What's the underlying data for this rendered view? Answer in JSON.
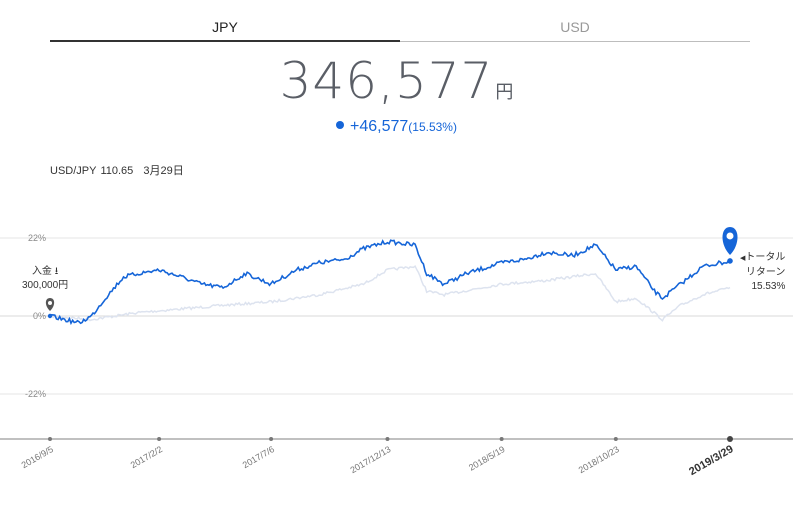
{
  "tabs": [
    {
      "label": "JPY",
      "active": true
    },
    {
      "label": "USD",
      "active": false
    }
  ],
  "balance": {
    "amount": "346,577",
    "unit": "円"
  },
  "change": {
    "amount": "+46,577",
    "percent": "(15.53%)"
  },
  "fx": {
    "pair": "USD/JPY",
    "rate": "110.65",
    "date": "3月29日"
  },
  "deposit": {
    "label": "入金",
    "amount": "300,000円"
  },
  "total_return": {
    "line1": "トータル",
    "line2": "リターン",
    "value": "15.53%"
  },
  "colors": {
    "portfolio": "#1565d8",
    "benchmark": "#dde3ef",
    "accent": "#1565d8"
  },
  "chart_data": {
    "type": "line",
    "y_ticks": [
      {
        "value": 22,
        "label": "22%"
      },
      {
        "value": 0,
        "label": "0%"
      },
      {
        "value": -22,
        "label": "-22%"
      }
    ],
    "ylim": [
      -35,
      25
    ],
    "x_ticks": [
      "2016/9/5",
      "2017/2/2",
      "2017/7/6",
      "2017/12/13",
      "2018/5/19",
      "2018/10/23",
      "2019/3/29"
    ],
    "x_ticks_bold": "2019/3/29",
    "series": [
      {
        "role": "portfolio",
        "x": [
          "2016/9/5",
          "2016/10/15",
          "2016/11/1",
          "2016/11/20",
          "2016/12/15",
          "2017/1/5",
          "2017/2/2",
          "2017/3/5",
          "2017/4/1",
          "2017/5/1",
          "2017/6/1",
          "2017/7/6",
          "2017/8/10",
          "2017/9/10",
          "2017/10/15",
          "2017/11/10",
          "2017/12/13",
          "2018/1/20",
          "2018/2/5",
          "2018/3/1",
          "2018/4/1",
          "2018/5/19",
          "2018/6/20",
          "2018/7/20",
          "2018/8/25",
          "2018/9/25",
          "2018/10/23",
          "2018/11/20",
          "2018/12/15",
          "2018/12/26",
          "2019/1/20",
          "2019/2/20",
          "2019/3/29"
        ],
        "y": [
          0,
          -2,
          0,
          5,
          11,
          12,
          13,
          11,
          9,
          8,
          12,
          9,
          13,
          15,
          16,
          19,
          21,
          20,
          12,
          9,
          12,
          15,
          16,
          18,
          17,
          20,
          13,
          14,
          7,
          5,
          9,
          14,
          15.53
        ]
      },
      {
        "role": "benchmark",
        "x": [
          "2016/9/5",
          "2016/11/1",
          "2017/1/5",
          "2017/3/5",
          "2017/5/1",
          "2017/7/6",
          "2017/9/10",
          "2017/11/10",
          "2017/12/13",
          "2018/1/20",
          "2018/2/5",
          "2018/3/1",
          "2018/5/19",
          "2018/7/20",
          "2018/9/25",
          "2018/10/23",
          "2018/11/20",
          "2018/12/26",
          "2019/1/20",
          "2019/2/20",
          "2019/3/29"
        ],
        "y": [
          0,
          -1,
          1,
          2,
          3,
          4,
          6,
          9,
          13,
          14,
          7,
          6,
          9,
          10,
          12,
          4,
          5,
          -1,
          3,
          6,
          8
        ]
      }
    ]
  }
}
